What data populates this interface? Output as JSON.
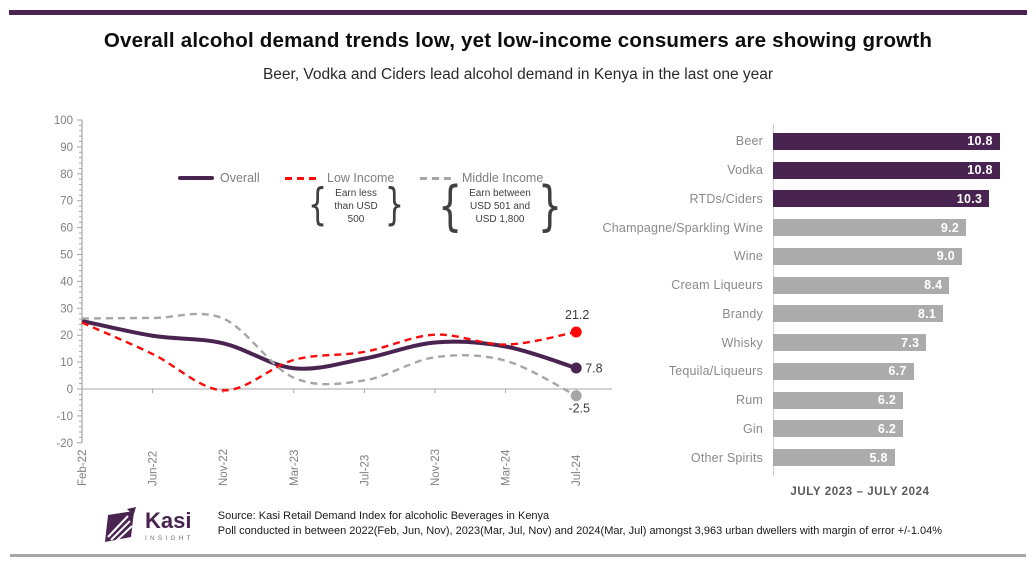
{
  "page": {
    "title": "Overall alcohol demand trends low, yet low-income consumers are showing growth",
    "subtitle": "Beer, Vodka and Ciders lead alcohol demand in Kenya in the last one year",
    "brand_color": "#4A2450"
  },
  "footer": {
    "logo_text": "Kasi",
    "logo_subtext": "INSIGHT",
    "source_line1": "Source: Kasi Retail Demand Index for alcoholic Beverages in Kenya",
    "source_line2": "Poll conducted  in between 2022(Feb, Jun, Nov), 2023(Mar, Jul, Nov) and 2024(Mar, Jul) amongst 3,963 urban dwellers with margin of error +/-1.04%"
  },
  "chart_data": [
    {
      "type": "line",
      "x": [
        "Feb-22",
        "Jun-22",
        "Nov-22",
        "Mar-23",
        "Jul-23",
        "Nov-23",
        "Mar-24",
        "Jul-24"
      ],
      "series": [
        {
          "name": "Overall",
          "color": "#4A2450",
          "style": "solid",
          "values": [
            25.3,
            19.8,
            17.0,
            7.7,
            11.3,
            17.3,
            15.8,
            7.8
          ],
          "end_label": "7.8",
          "annotation": ""
        },
        {
          "name": "Low Income",
          "color": "#FA0A0A",
          "style": "dashed",
          "values": [
            24.7,
            13.0,
            -0.5,
            10.8,
            13.8,
            20.2,
            16.5,
            21.2
          ],
          "end_label": "21.2",
          "annotation": "Earn less than USD 500"
        },
        {
          "name": "Middle Income",
          "color": "#A6A6A6",
          "style": "dashed",
          "values": [
            26.2,
            26.4,
            26.2,
            4.2,
            3.2,
            11.8,
            10.5,
            -2.5
          ],
          "end_label": "-2.5",
          "annotation": "Earn between USD 501 and USD 1,800"
        }
      ],
      "ylim": [
        -20,
        100
      ],
      "ytick_step": 10,
      "grid": false,
      "legend_position": "top",
      "axis_color": "#A6A6A6",
      "tick_label_color": "#808080",
      "end_label_color": "#3d3d3d"
    },
    {
      "type": "bar",
      "orientation": "horizontal",
      "categories": [
        "Beer",
        "Vodka",
        "RTDs/Ciders",
        "Champagne/Sparkling Wine",
        "Wine",
        "Cream Liqueurs",
        "Brandy",
        "Whisky",
        "Tequila/Liqueurs",
        "Rum",
        "Gin",
        "Other Spirits"
      ],
      "values": [
        10.8,
        10.8,
        10.3,
        9.2,
        9.0,
        8.4,
        8.1,
        7.3,
        6.7,
        6.2,
        6.2,
        5.8
      ],
      "highlight_count": 3,
      "highlight_color": "#4A2450",
      "default_color": "#ABABAB",
      "caption": "JULY 2023 – JULY 2024"
    }
  ]
}
